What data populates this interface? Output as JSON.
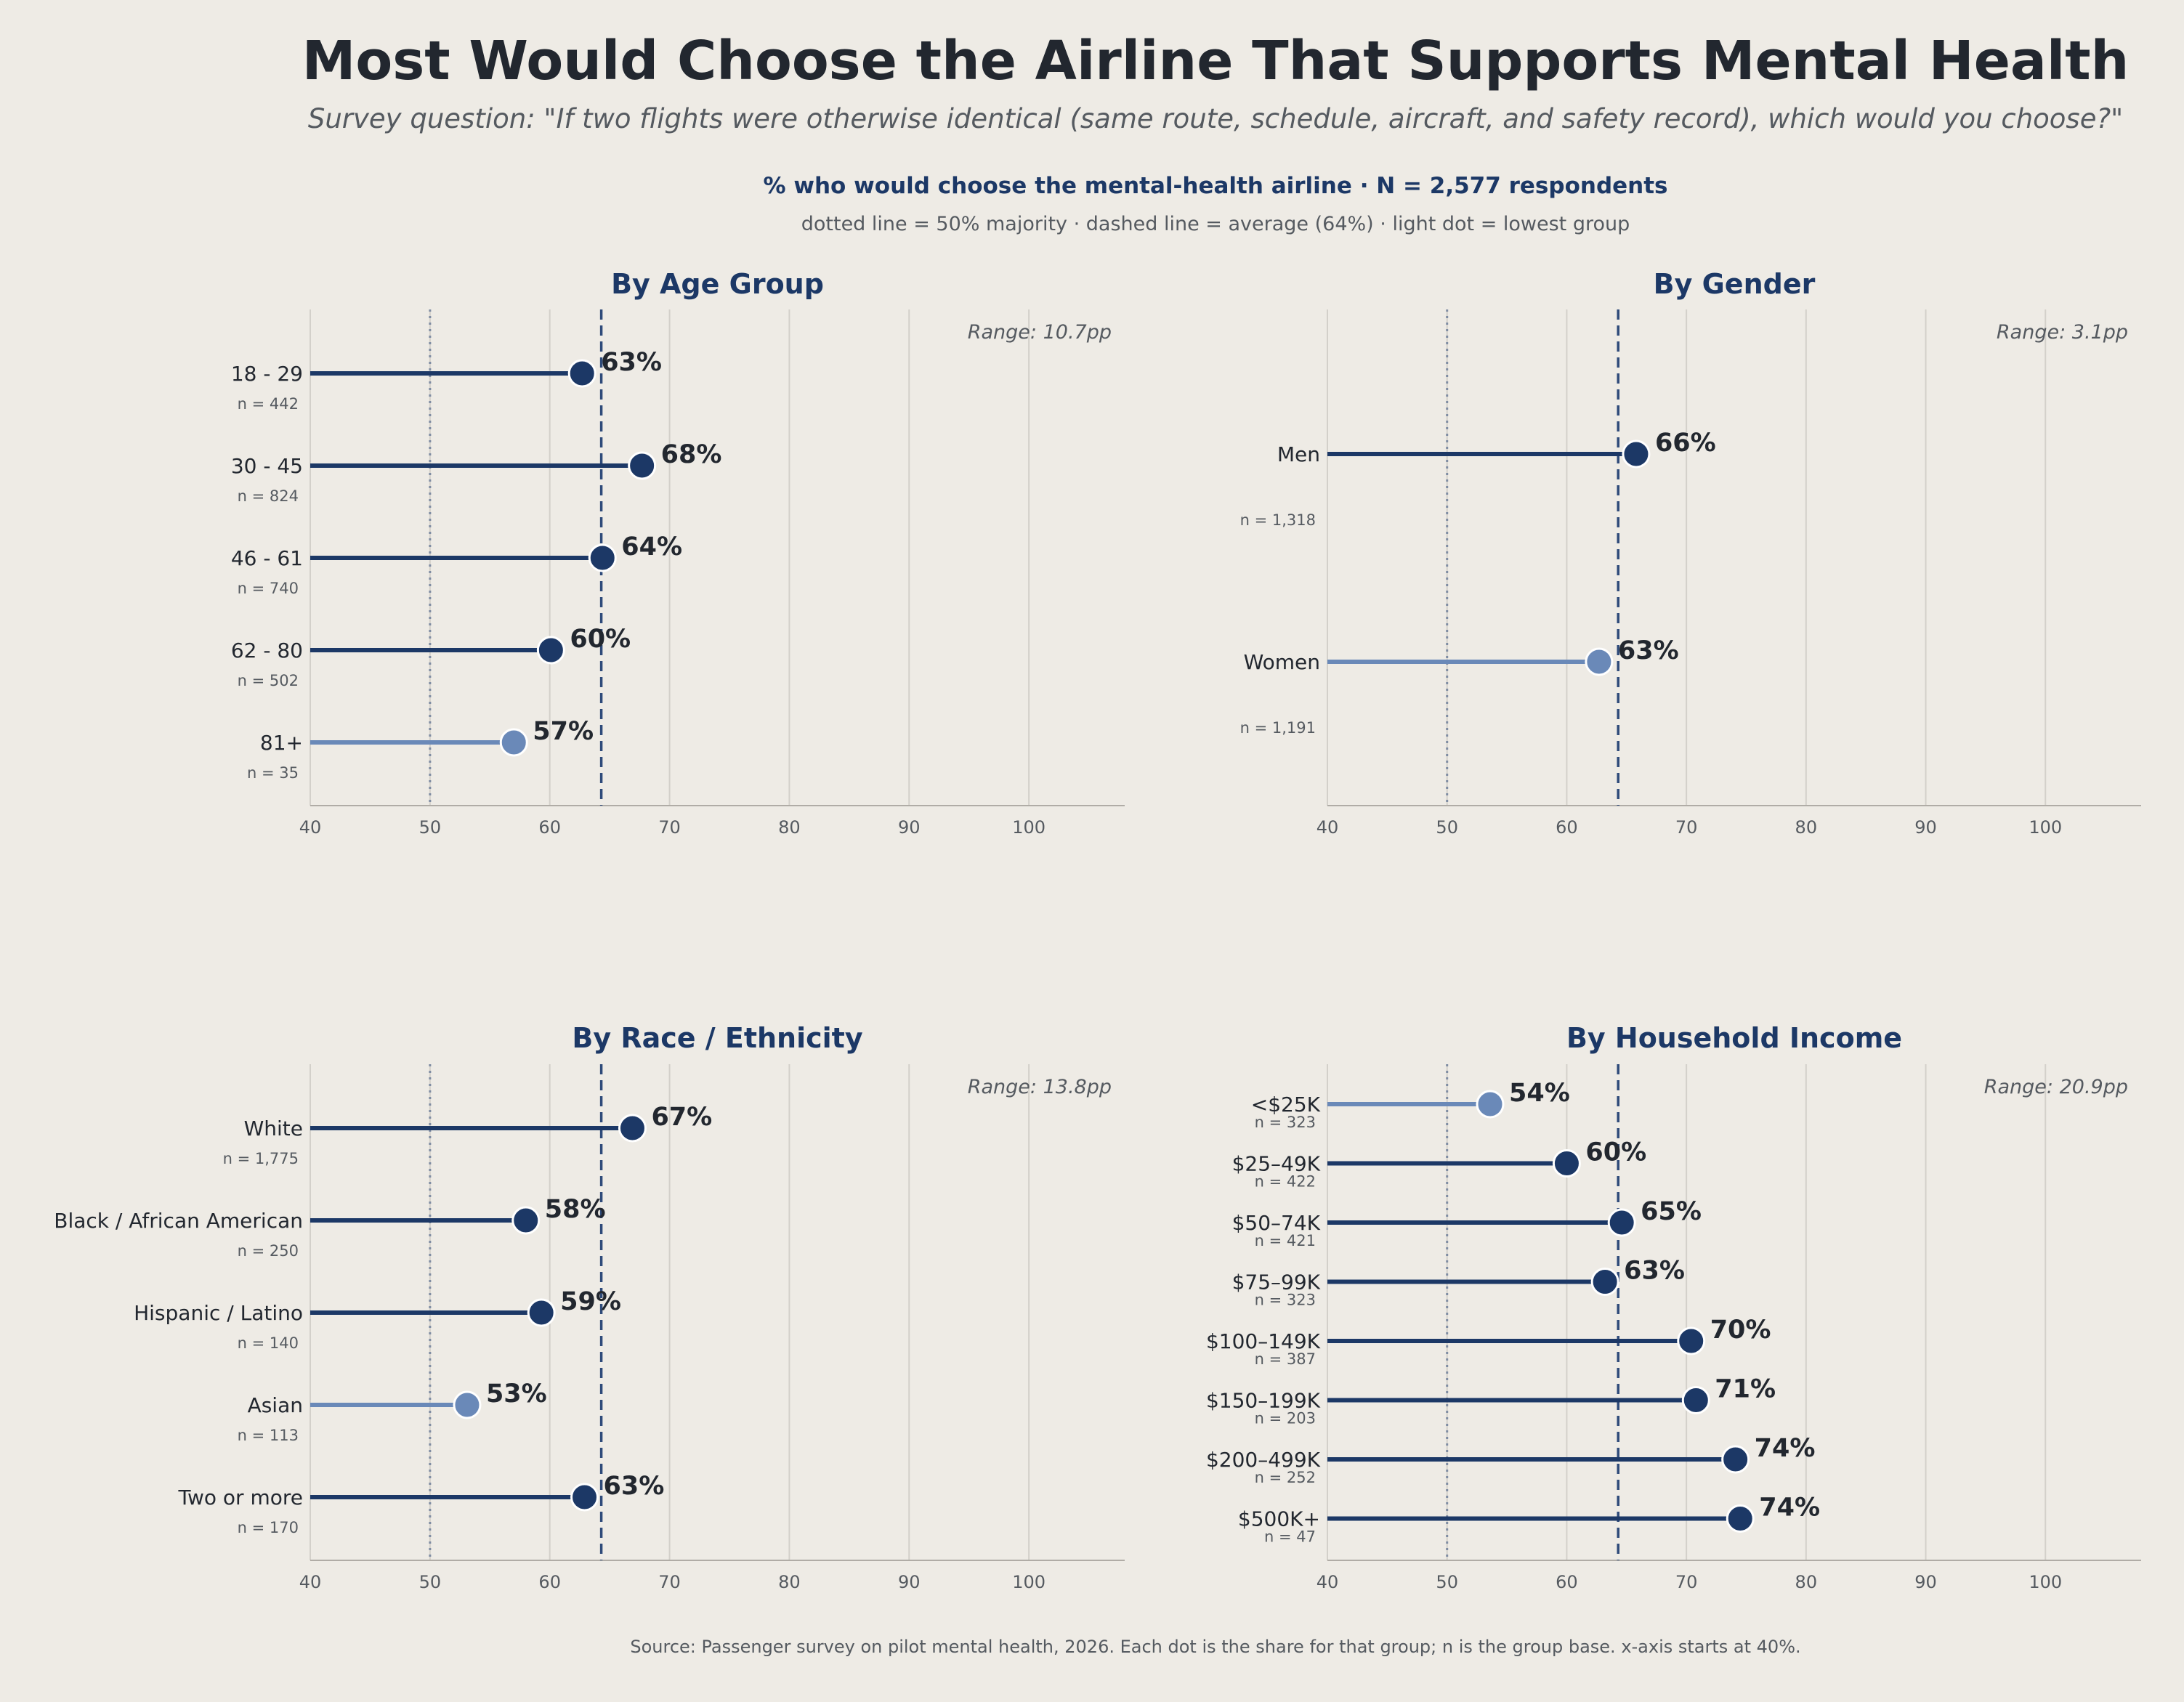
{
  "header": {
    "title": "Most Would Choose the Airline That Supports Mental Health",
    "subtitle": "Survey question:  \"If two flights were otherwise identical (same route, schedule, aircraft, and safety record), which would you choose?\"",
    "metric": "% who would choose the mental-health airline   ·   N = 2,577 respondents",
    "legend_note": "dotted line = 50% majority   ·   dashed line = average (64%)   ·   light dot = lowest group"
  },
  "footer": "Source: Passenger survey on pilot mental health, 2026.  Each dot is the share for that group; n is the group base.  x-axis starts at 40%.",
  "colors": {
    "dark": "#1c3866",
    "light": "#6a89b8",
    "grid": "#d3d0ca",
    "axis": "#b0aca6",
    "title_blue": "#1c3866"
  },
  "chart_data": [
    {
      "type": "dot",
      "title": "By Age Group",
      "range_label": "Range: 10.7pp",
      "xlim": [
        40,
        108
      ],
      "xticks": [
        40,
        50,
        60,
        70,
        80,
        90,
        100
      ],
      "majority_line": 50,
      "average_line": 64.3,
      "categories": [
        "18 - 29",
        "30 - 45",
        "46 - 61",
        "62 - 80",
        "81+"
      ],
      "n_labels": [
        "n = 442",
        "n = 824",
        "n = 740",
        "n = 502",
        "n = 35"
      ],
      "values": [
        62.7,
        67.7,
        64.4,
        60.1,
        57.0
      ],
      "value_labels": [
        "63%",
        "68%",
        "64%",
        "60%",
        "57%"
      ],
      "lowest_index": 4
    },
    {
      "type": "dot",
      "title": "By Gender",
      "range_label": "Range: 3.1pp",
      "xlim": [
        40,
        108
      ],
      "xticks": [
        40,
        50,
        60,
        70,
        80,
        90,
        100
      ],
      "majority_line": 50,
      "average_line": 64.3,
      "categories": [
        "Men",
        "Women"
      ],
      "n_labels": [
        "n = 1,318",
        "n = 1,191"
      ],
      "values": [
        65.8,
        62.7
      ],
      "value_labels": [
        "66%",
        "63%"
      ],
      "lowest_index": 1
    },
    {
      "type": "dot",
      "title": "By Race / Ethnicity",
      "range_label": "Range: 13.8pp",
      "xlim": [
        40,
        108
      ],
      "xticks": [
        40,
        50,
        60,
        70,
        80,
        90,
        100
      ],
      "majority_line": 50,
      "average_line": 64.3,
      "categories": [
        "White",
        "Black / African American",
        "Hispanic / Latino",
        "Asian",
        "Two or more"
      ],
      "n_labels": [
        "n = 1,775",
        "n = 250",
        "n = 140",
        "n = 113",
        "n = 170"
      ],
      "values": [
        66.9,
        58.0,
        59.3,
        53.1,
        62.9
      ],
      "value_labels": [
        "67%",
        "58%",
        "59%",
        "53%",
        "63%"
      ],
      "lowest_index": 3
    },
    {
      "type": "dot",
      "title": "By Household Income",
      "range_label": "Range: 20.9pp",
      "xlim": [
        40,
        108
      ],
      "xticks": [
        40,
        50,
        60,
        70,
        80,
        90,
        100
      ],
      "majority_line": 50,
      "average_line": 64.3,
      "categories": [
        "<$25K",
        "$25–49K",
        "$50–74K",
        "$75–99K",
        "$100–149K",
        "$150–199K",
        "$200–499K",
        "$500K+"
      ],
      "n_labels": [
        "n = 323",
        "n = 422",
        "n = 421",
        "n = 323",
        "n = 387",
        "n = 203",
        "n = 252",
        "n = 47"
      ],
      "values": [
        53.6,
        60.0,
        64.6,
        63.2,
        70.4,
        70.8,
        74.1,
        74.5
      ],
      "value_labels": [
        "54%",
        "60%",
        "65%",
        "63%",
        "70%",
        "71%",
        "74%",
        "74%"
      ],
      "lowest_index": 0
    }
  ]
}
